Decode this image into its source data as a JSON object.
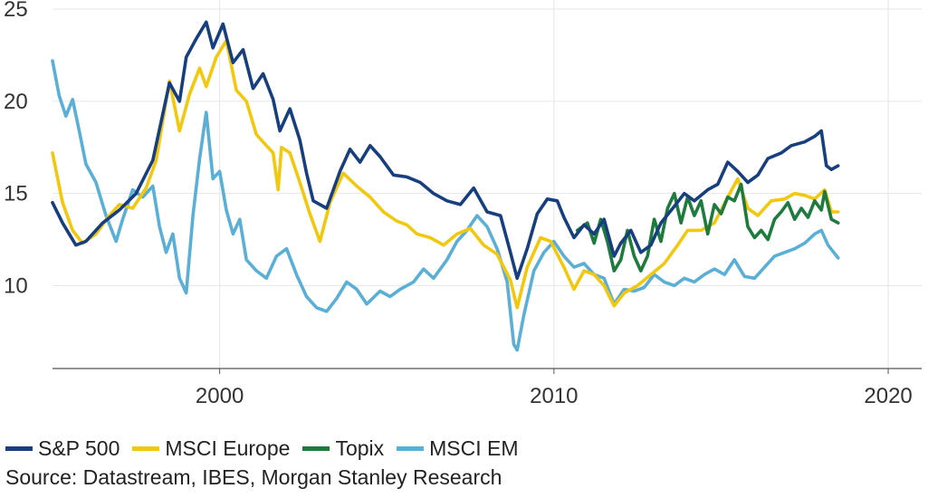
{
  "chart_data": {
    "type": "line",
    "title": "",
    "xlabel": "",
    "ylabel": "",
    "xlim": [
      1995.0,
      2021.0
    ],
    "ylim": [
      5.5,
      25.5
    ],
    "x_ticks": [
      2000,
      2010,
      2020
    ],
    "x_tick_labels": [
      "2000",
      "2010",
      "2020"
    ],
    "y_ticks": [
      10,
      15,
      20,
      25
    ],
    "y_tick_labels": [
      "10",
      "15",
      "20",
      "25"
    ],
    "grid": true,
    "legend_position": "bottom-left",
    "series": [
      {
        "name": "S&P 500",
        "color": "#173f7f",
        "points": [
          [
            1995.0,
            14.5
          ],
          [
            1995.3,
            13.4
          ],
          [
            1995.7,
            12.2
          ],
          [
            1996.0,
            12.4
          ],
          [
            1996.5,
            13.4
          ],
          [
            1997.0,
            14.1
          ],
          [
            1997.5,
            15.0
          ],
          [
            1998.0,
            16.8
          ],
          [
            1998.5,
            21.0
          ],
          [
            1998.8,
            20.0
          ],
          [
            1999.0,
            22.4
          ],
          [
            1999.3,
            23.4
          ],
          [
            1999.6,
            24.3
          ],
          [
            1999.8,
            22.9
          ],
          [
            2000.1,
            24.2
          ],
          [
            2000.4,
            22.1
          ],
          [
            2000.7,
            22.8
          ],
          [
            2001.0,
            20.7
          ],
          [
            2001.3,
            21.5
          ],
          [
            2001.6,
            20.1
          ],
          [
            2001.8,
            18.4
          ],
          [
            2002.1,
            19.6
          ],
          [
            2002.4,
            17.9
          ],
          [
            2002.6,
            16.1
          ],
          [
            2002.8,
            14.6
          ],
          [
            2003.2,
            14.2
          ],
          [
            2003.6,
            16.2
          ],
          [
            2003.9,
            17.4
          ],
          [
            2004.2,
            16.7
          ],
          [
            2004.5,
            17.6
          ],
          [
            2004.8,
            17.0
          ],
          [
            2005.2,
            16.0
          ],
          [
            2005.6,
            15.9
          ],
          [
            2006.0,
            15.6
          ],
          [
            2006.4,
            15.0
          ],
          [
            2006.8,
            14.6
          ],
          [
            2007.2,
            14.4
          ],
          [
            2007.6,
            15.3
          ],
          [
            2008.0,
            14.0
          ],
          [
            2008.4,
            13.8
          ],
          [
            2008.7,
            11.8
          ],
          [
            2008.9,
            10.4
          ],
          [
            2009.2,
            12.0
          ],
          [
            2009.5,
            13.9
          ],
          [
            2009.8,
            14.7
          ],
          [
            2010.1,
            14.6
          ],
          [
            2010.3,
            13.7
          ],
          [
            2010.6,
            12.6
          ],
          [
            2010.9,
            13.3
          ],
          [
            2011.2,
            12.8
          ],
          [
            2011.5,
            13.6
          ],
          [
            2011.8,
            11.6
          ],
          [
            2012.0,
            12.3
          ],
          [
            2012.3,
            13.0
          ],
          [
            2012.6,
            11.8
          ],
          [
            2012.9,
            12.2
          ],
          [
            2013.2,
            13.4
          ],
          [
            2013.6,
            14.3
          ],
          [
            2013.9,
            15.0
          ],
          [
            2014.2,
            14.6
          ],
          [
            2014.6,
            15.2
          ],
          [
            2014.9,
            15.5
          ],
          [
            2015.2,
            16.7
          ],
          [
            2015.5,
            16.2
          ],
          [
            2015.8,
            15.6
          ],
          [
            2016.1,
            16.0
          ],
          [
            2016.4,
            16.9
          ],
          [
            2016.8,
            17.2
          ],
          [
            2017.1,
            17.6
          ],
          [
            2017.5,
            17.8
          ],
          [
            2017.8,
            18.1
          ],
          [
            2018.0,
            18.4
          ],
          [
            2018.15,
            16.5
          ],
          [
            2018.3,
            16.3
          ],
          [
            2018.5,
            16.5
          ]
        ]
      },
      {
        "name": "MSCI Europe",
        "color": "#f2c80f",
        "points": [
          [
            1995.0,
            17.2
          ],
          [
            1995.3,
            14.5
          ],
          [
            1995.6,
            13.0
          ],
          [
            1995.9,
            12.3
          ],
          [
            1996.3,
            12.8
          ],
          [
            1996.7,
            13.8
          ],
          [
            1997.0,
            14.4
          ],
          [
            1997.4,
            14.2
          ],
          [
            1997.8,
            15.3
          ],
          [
            1998.1,
            16.8
          ],
          [
            1998.5,
            21.1
          ],
          [
            1998.8,
            18.4
          ],
          [
            1999.1,
            20.4
          ],
          [
            1999.4,
            21.8
          ],
          [
            1999.6,
            20.8
          ],
          [
            1999.9,
            22.4
          ],
          [
            2000.2,
            23.3
          ],
          [
            2000.5,
            20.6
          ],
          [
            2000.8,
            20.0
          ],
          [
            2001.1,
            18.2
          ],
          [
            2001.4,
            17.6
          ],
          [
            2001.6,
            17.2
          ],
          [
            2001.75,
            15.2
          ],
          [
            2001.85,
            17.5
          ],
          [
            2002.1,
            17.2
          ],
          [
            2002.4,
            15.6
          ],
          [
            2002.7,
            13.9
          ],
          [
            2003.0,
            12.4
          ],
          [
            2003.3,
            14.5
          ],
          [
            2003.7,
            16.1
          ],
          [
            2004.1,
            15.4
          ],
          [
            2004.5,
            14.8
          ],
          [
            2004.9,
            14.0
          ],
          [
            2005.3,
            13.5
          ],
          [
            2005.6,
            13.3
          ],
          [
            2005.9,
            12.8
          ],
          [
            2006.3,
            12.6
          ],
          [
            2006.7,
            12.2
          ],
          [
            2007.1,
            12.8
          ],
          [
            2007.5,
            13.1
          ],
          [
            2007.9,
            12.2
          ],
          [
            2008.3,
            11.7
          ],
          [
            2008.7,
            10.3
          ],
          [
            2008.9,
            8.8
          ],
          [
            2009.2,
            11.0
          ],
          [
            2009.6,
            12.6
          ],
          [
            2009.9,
            12.4
          ],
          [
            2010.3,
            11.0
          ],
          [
            2010.6,
            9.8
          ],
          [
            2010.9,
            10.8
          ],
          [
            2011.2,
            10.6
          ],
          [
            2011.5,
            10.0
          ],
          [
            2011.8,
            8.9
          ],
          [
            2012.1,
            9.6
          ],
          [
            2012.5,
            10.0
          ],
          [
            2012.9,
            10.6
          ],
          [
            2013.3,
            11.2
          ],
          [
            2013.7,
            12.2
          ],
          [
            2014.0,
            13.0
          ],
          [
            2014.4,
            13.0
          ],
          [
            2014.8,
            13.4
          ],
          [
            2015.2,
            14.8
          ],
          [
            2015.5,
            15.8
          ],
          [
            2015.8,
            14.2
          ],
          [
            2016.1,
            13.8
          ],
          [
            2016.5,
            14.6
          ],
          [
            2016.9,
            14.7
          ],
          [
            2017.2,
            15.0
          ],
          [
            2017.5,
            14.9
          ],
          [
            2017.8,
            14.7
          ],
          [
            2018.1,
            15.2
          ],
          [
            2018.3,
            14.0
          ],
          [
            2018.5,
            14.0
          ]
        ]
      },
      {
        "name": "Topix",
        "color": "#1e7a3d",
        "points": [
          [
            2010.7,
            13.0
          ],
          [
            2011.0,
            13.4
          ],
          [
            2011.2,
            12.3
          ],
          [
            2011.4,
            13.6
          ],
          [
            2011.6,
            12.4
          ],
          [
            2011.8,
            10.8
          ],
          [
            2012.0,
            11.4
          ],
          [
            2012.2,
            13.0
          ],
          [
            2012.4,
            11.6
          ],
          [
            2012.6,
            10.8
          ],
          [
            2012.8,
            11.6
          ],
          [
            2013.0,
            13.6
          ],
          [
            2013.2,
            12.4
          ],
          [
            2013.4,
            14.2
          ],
          [
            2013.6,
            15.0
          ],
          [
            2013.8,
            13.4
          ],
          [
            2014.0,
            14.8
          ],
          [
            2014.2,
            13.8
          ],
          [
            2014.4,
            14.6
          ],
          [
            2014.6,
            12.8
          ],
          [
            2014.8,
            14.4
          ],
          [
            2015.0,
            13.9
          ],
          [
            2015.2,
            14.8
          ],
          [
            2015.4,
            14.6
          ],
          [
            2015.6,
            15.5
          ],
          [
            2015.8,
            13.2
          ],
          [
            2016.0,
            12.6
          ],
          [
            2016.2,
            13.0
          ],
          [
            2016.4,
            12.5
          ],
          [
            2016.6,
            13.6
          ],
          [
            2016.8,
            14.0
          ],
          [
            2017.0,
            14.5
          ],
          [
            2017.2,
            13.6
          ],
          [
            2017.4,
            14.2
          ],
          [
            2017.6,
            13.7
          ],
          [
            2017.8,
            14.6
          ],
          [
            2018.0,
            14.1
          ],
          [
            2018.1,
            15.1
          ],
          [
            2018.3,
            13.6
          ],
          [
            2018.5,
            13.4
          ]
        ]
      },
      {
        "name": "MSCI EM",
        "color": "#5aafd6",
        "points": [
          [
            1995.0,
            22.2
          ],
          [
            1995.2,
            20.3
          ],
          [
            1995.4,
            19.2
          ],
          [
            1995.6,
            20.1
          ],
          [
            1995.8,
            18.4
          ],
          [
            1996.0,
            16.6
          ],
          [
            1996.3,
            15.6
          ],
          [
            1996.6,
            13.8
          ],
          [
            1996.9,
            12.4
          ],
          [
            1997.1,
            13.6
          ],
          [
            1997.4,
            15.2
          ],
          [
            1997.7,
            14.8
          ],
          [
            1998.0,
            15.4
          ],
          [
            1998.2,
            13.2
          ],
          [
            1998.4,
            11.8
          ],
          [
            1998.6,
            12.8
          ],
          [
            1998.8,
            10.4
          ],
          [
            1999.0,
            9.6
          ],
          [
            1999.2,
            13.8
          ],
          [
            1999.4,
            16.9
          ],
          [
            1999.6,
            19.4
          ],
          [
            1999.8,
            15.8
          ],
          [
            2000.0,
            16.2
          ],
          [
            2000.2,
            14.1
          ],
          [
            2000.4,
            12.8
          ],
          [
            2000.6,
            13.6
          ],
          [
            2000.8,
            11.4
          ],
          [
            2001.1,
            10.8
          ],
          [
            2001.4,
            10.4
          ],
          [
            2001.7,
            11.6
          ],
          [
            2002.0,
            12.0
          ],
          [
            2002.3,
            10.6
          ],
          [
            2002.6,
            9.4
          ],
          [
            2002.9,
            8.8
          ],
          [
            2003.2,
            8.6
          ],
          [
            2003.5,
            9.3
          ],
          [
            2003.8,
            10.2
          ],
          [
            2004.1,
            9.8
          ],
          [
            2004.4,
            9.0
          ],
          [
            2004.8,
            9.7
          ],
          [
            2005.1,
            9.4
          ],
          [
            2005.4,
            9.8
          ],
          [
            2005.8,
            10.2
          ],
          [
            2006.1,
            10.9
          ],
          [
            2006.4,
            10.4
          ],
          [
            2006.8,
            11.4
          ],
          [
            2007.1,
            12.4
          ],
          [
            2007.4,
            13.0
          ],
          [
            2007.7,
            13.8
          ],
          [
            2008.0,
            13.2
          ],
          [
            2008.3,
            12.0
          ],
          [
            2008.6,
            10.2
          ],
          [
            2008.8,
            6.8
          ],
          [
            2008.9,
            6.5
          ],
          [
            2009.1,
            8.4
          ],
          [
            2009.4,
            10.8
          ],
          [
            2009.7,
            11.8
          ],
          [
            2010.0,
            12.4
          ],
          [
            2010.3,
            11.6
          ],
          [
            2010.6,
            11.0
          ],
          [
            2010.9,
            11.2
          ],
          [
            2011.2,
            10.6
          ],
          [
            2011.5,
            10.4
          ],
          [
            2011.8,
            9.0
          ],
          [
            2012.1,
            9.8
          ],
          [
            2012.4,
            9.7
          ],
          [
            2012.7,
            9.9
          ],
          [
            2013.0,
            10.6
          ],
          [
            2013.3,
            10.2
          ],
          [
            2013.6,
            10.0
          ],
          [
            2013.9,
            10.4
          ],
          [
            2014.2,
            10.2
          ],
          [
            2014.5,
            10.6
          ],
          [
            2014.8,
            10.9
          ],
          [
            2015.1,
            10.6
          ],
          [
            2015.4,
            11.4
          ],
          [
            2015.7,
            10.5
          ],
          [
            2016.0,
            10.4
          ],
          [
            2016.3,
            11.0
          ],
          [
            2016.6,
            11.6
          ],
          [
            2016.9,
            11.8
          ],
          [
            2017.2,
            12.0
          ],
          [
            2017.5,
            12.3
          ],
          [
            2017.8,
            12.8
          ],
          [
            2018.0,
            13.0
          ],
          [
            2018.2,
            12.2
          ],
          [
            2018.5,
            11.5
          ]
        ]
      }
    ]
  },
  "source_text": "Source: Datastream, IBES, Morgan Stanley Research"
}
